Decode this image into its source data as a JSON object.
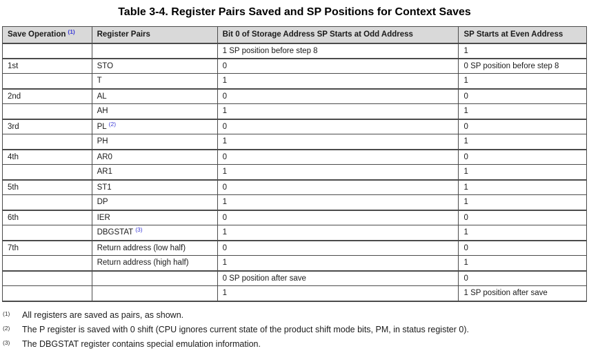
{
  "page": {
    "title": "Table 3-4. Register Pairs Saved and SP Positions for Context Saves"
  },
  "table": {
    "header": [
      {
        "key": "save-operation",
        "label": "Save Operation",
        "note": "(1)"
      },
      {
        "key": "register-pairs",
        "label": "Register Pairs",
        "note": ""
      },
      {
        "key": "odd-address",
        "label": "Bit 0 of Storage Address SP Starts at Odd Address",
        "note": ""
      },
      {
        "key": "even-address",
        "label": "SP Starts at Even Address",
        "note": ""
      }
    ],
    "rows": [
      {
        "save_op": "",
        "register": "",
        "note": "",
        "odd": "1 SP position before step 8",
        "even": "1",
        "group_start": false
      },
      {
        "save_op": "1st",
        "register": "STO",
        "note": "",
        "odd": "0",
        "even": "0 SP position before step 8",
        "group_start": true
      },
      {
        "save_op": "",
        "register": "T",
        "note": "",
        "odd": "1",
        "even": "1",
        "group_start": false
      },
      {
        "save_op": "2nd",
        "register": "AL",
        "note": "",
        "odd": "0",
        "even": "0",
        "group_start": true
      },
      {
        "save_op": "",
        "register": "AH",
        "note": "",
        "odd": "1",
        "even": "1",
        "group_start": false
      },
      {
        "save_op": "3rd",
        "register": "PL",
        "note": "(2)",
        "odd": "0",
        "even": "0",
        "group_start": true
      },
      {
        "save_op": "",
        "register": "PH",
        "note": "",
        "odd": "1",
        "even": "1",
        "group_start": false
      },
      {
        "save_op": "4th",
        "register": "AR0",
        "note": "",
        "odd": "0",
        "even": "0",
        "group_start": true
      },
      {
        "save_op": "",
        "register": "AR1",
        "note": "",
        "odd": "1",
        "even": "1",
        "group_start": false
      },
      {
        "save_op": "5th",
        "register": "ST1",
        "note": "",
        "odd": "0",
        "even": "1",
        "group_start": true
      },
      {
        "save_op": "",
        "register": "DP",
        "note": "",
        "odd": "1",
        "even": "1",
        "group_start": false
      },
      {
        "save_op": "6th",
        "register": "IER",
        "note": "",
        "odd": "0",
        "even": "0",
        "group_start": true
      },
      {
        "save_op": "",
        "register": "DBGSTAT",
        "note": "(3)",
        "odd": "1",
        "even": "1",
        "group_start": false
      },
      {
        "save_op": "7th",
        "register": "Return address (low half)",
        "note": "",
        "odd": "0",
        "even": "0",
        "group_start": true
      },
      {
        "save_op": "",
        "register": "Return address (high half)",
        "note": "",
        "odd": "1",
        "even": "1",
        "group_start": false
      },
      {
        "save_op": "",
        "register": "",
        "note": "",
        "odd": "0 SP position after save",
        "even": "0",
        "group_start": true
      },
      {
        "save_op": "",
        "register": "",
        "note": "",
        "odd": "1",
        "even": "1 SP position after save",
        "group_start": false
      }
    ]
  },
  "footnotes": [
    {
      "marker": "(1)",
      "text": "All registers are saved as pairs, as shown."
    },
    {
      "marker": "(2)",
      "text": "The P register is saved with 0 shift (CPU ignores current state of the product shift mode bits, PM, in status register 0)."
    },
    {
      "marker": "(3)",
      "text": "The DBGSTAT register contains special emulation information."
    }
  ],
  "colors": {
    "header_bg": "#d9d9d9",
    "border": "#4a4a4a",
    "note_blue": "#3b3bd6",
    "text": "#1a1a1a"
  }
}
